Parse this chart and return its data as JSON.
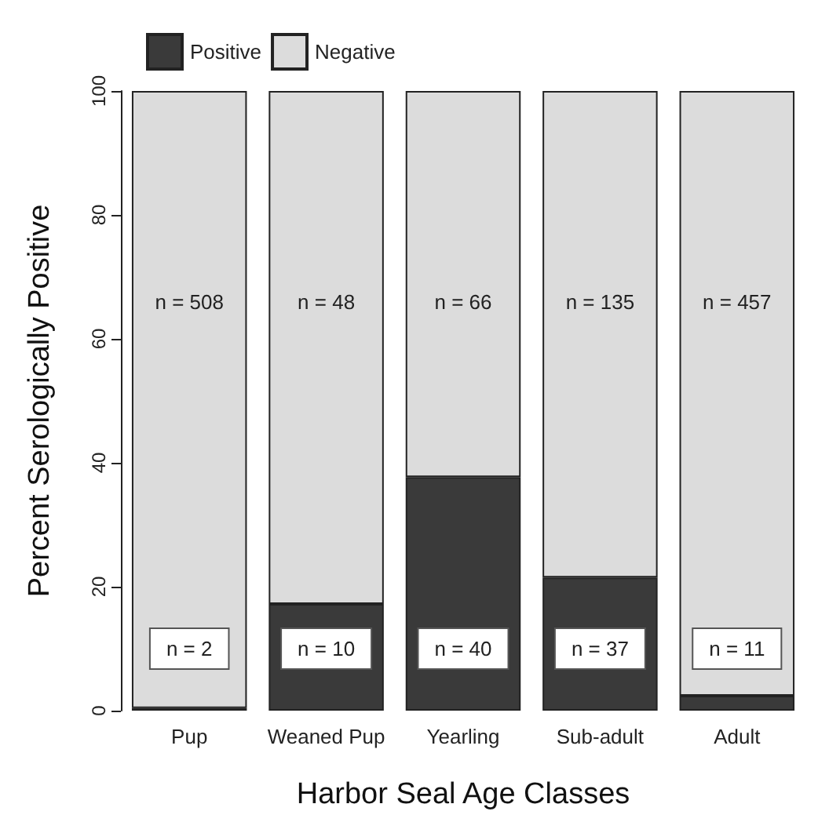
{
  "chart_data": {
    "type": "bar",
    "stacked": true,
    "xlabel": "Harbor Seal Age Classes",
    "ylabel": "Percent Serologically Positive",
    "categories": [
      "Pup",
      "Weaned Pup",
      "Yearling",
      "Sub-adult",
      "Adult"
    ],
    "series": [
      {
        "name": "Positive",
        "color": "#3a3a3a",
        "values": [
          0.4,
          17.2,
          37.7,
          21.5,
          2.4
        ]
      },
      {
        "name": "Negative",
        "color": "#dcdcdc",
        "values": [
          99.6,
          82.8,
          62.3,
          78.5,
          97.6
        ]
      }
    ],
    "ylim": [
      0,
      100
    ],
    "yticks": [
      0,
      20,
      40,
      60,
      80,
      100
    ],
    "grid": false,
    "legend": "top left",
    "annotations": [
      "n = 508",
      "n = 48",
      "n = 66",
      "n = 135",
      "n = 457",
      "n = 2",
      "n = 10",
      "n = 40",
      "n = 37",
      "n = 11"
    ]
  }
}
